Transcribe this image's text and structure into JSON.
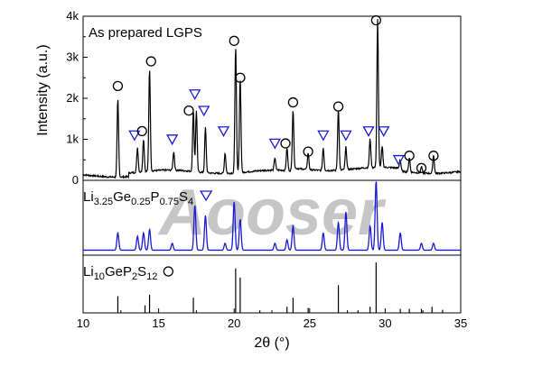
{
  "chart_data": {
    "type": "line",
    "xlabel": "2θ (°)",
    "ylabel": "Intensity (a.u.)",
    "xlim": [
      10,
      35
    ],
    "x_ticks": [
      "10",
      "15",
      "20",
      "25",
      "30",
      "35"
    ],
    "y_ticks": [
      "0",
      "1k",
      "2k",
      "3k",
      "4k"
    ],
    "ylim": [
      0,
      4000
    ],
    "watermark": "Aooser",
    "panels": [
      {
        "name": "As prepared  LGPS",
        "label_color": "#000000",
        "series_color": "#000000",
        "kind": "measured",
        "peaks": [
          {
            "x": 12.3,
            "y": 1900
          },
          {
            "x": 13.6,
            "y": 600
          },
          {
            "x": 14.0,
            "y": 800
          },
          {
            "x": 14.4,
            "y": 2500
          },
          {
            "x": 16.0,
            "y": 450
          },
          {
            "x": 17.3,
            "y": 1500
          },
          {
            "x": 17.5,
            "y": 1500
          },
          {
            "x": 18.1,
            "y": 1100
          },
          {
            "x": 19.4,
            "y": 500
          },
          {
            "x": 20.1,
            "y": 3100
          },
          {
            "x": 20.4,
            "y": 2300
          },
          {
            "x": 22.7,
            "y": 300
          },
          {
            "x": 23.5,
            "y": 550
          },
          {
            "x": 23.9,
            "y": 1500
          },
          {
            "x": 24.9,
            "y": 400
          },
          {
            "x": 25.9,
            "y": 550
          },
          {
            "x": 26.9,
            "y": 1500
          },
          {
            "x": 27.4,
            "y": 550
          },
          {
            "x": 29.0,
            "y": 700
          },
          {
            "x": 29.5,
            "y": 3600
          },
          {
            "x": 29.8,
            "y": 500
          },
          {
            "x": 31.0,
            "y": 250
          },
          {
            "x": 31.6,
            "y": 350
          },
          {
            "x": 32.4,
            "y": 150
          },
          {
            "x": 33.2,
            "y": 450
          }
        ],
        "markers": [
          {
            "x": 12.3,
            "y": 2300,
            "shape": "circle"
          },
          {
            "x": 13.4,
            "y": 1100,
            "shape": "triangle"
          },
          {
            "x": 13.9,
            "y": 1200,
            "shape": "circle"
          },
          {
            "x": 14.5,
            "y": 2900,
            "shape": "circle"
          },
          {
            "x": 15.9,
            "y": 1000,
            "shape": "triangle"
          },
          {
            "x": 17.0,
            "y": 1700,
            "shape": "circle"
          },
          {
            "x": 17.4,
            "y": 2100,
            "shape": "triangle"
          },
          {
            "x": 18.0,
            "y": 1700,
            "shape": "triangle"
          },
          {
            "x": 19.3,
            "y": 1200,
            "shape": "triangle"
          },
          {
            "x": 20.0,
            "y": 3400,
            "shape": "circle"
          },
          {
            "x": 20.4,
            "y": 2500,
            "shape": "circle"
          },
          {
            "x": 22.7,
            "y": 900,
            "shape": "triangle"
          },
          {
            "x": 23.4,
            "y": 900,
            "shape": "circle"
          },
          {
            "x": 23.9,
            "y": 1900,
            "shape": "circle"
          },
          {
            "x": 24.9,
            "y": 700,
            "shape": "circle"
          },
          {
            "x": 25.9,
            "y": 1100,
            "shape": "triangle"
          },
          {
            "x": 26.9,
            "y": 1800,
            "shape": "circle"
          },
          {
            "x": 27.4,
            "y": 1100,
            "shape": "triangle"
          },
          {
            "x": 28.9,
            "y": 1200,
            "shape": "triangle"
          },
          {
            "x": 29.4,
            "y": 3900,
            "shape": "circle"
          },
          {
            "x": 29.9,
            "y": 1200,
            "shape": "triangle"
          },
          {
            "x": 30.9,
            "y": 500,
            "shape": "triangle"
          },
          {
            "x": 31.6,
            "y": 600,
            "shape": "circle"
          },
          {
            "x": 32.4,
            "y": 300,
            "shape": "circle"
          },
          {
            "x": 33.2,
            "y": 600,
            "shape": "circle"
          }
        ]
      },
      {
        "name": "Li3.25Ge0.25P0.75S4",
        "label_parts": [
          {
            "t": "Li",
            "sub": false
          },
          {
            "t": "3.25",
            "sub": true
          },
          {
            "t": "Ge",
            "sub": false
          },
          {
            "t": "0.25",
            "sub": true
          },
          {
            "t": "P",
            "sub": false
          },
          {
            "t": "0.75",
            "sub": true
          },
          {
            "t": "S",
            "sub": false
          },
          {
            "t": "4",
            "sub": true
          }
        ],
        "legend_marker": "triangle",
        "label_color": "#1a1ad6",
        "series_color": "#1a1ad6",
        "kind": "calculated",
        "peaks": [
          {
            "x": 12.3,
            "y": 0.25
          },
          {
            "x": 13.6,
            "y": 0.2
          },
          {
            "x": 14.0,
            "y": 0.25
          },
          {
            "x": 14.4,
            "y": 0.3
          },
          {
            "x": 15.9,
            "y": 0.1
          },
          {
            "x": 17.4,
            "y": 0.65
          },
          {
            "x": 18.1,
            "y": 0.5
          },
          {
            "x": 19.4,
            "y": 0.1
          },
          {
            "x": 20.0,
            "y": 0.7
          },
          {
            "x": 20.4,
            "y": 0.45
          },
          {
            "x": 22.7,
            "y": 0.1
          },
          {
            "x": 23.5,
            "y": 0.15
          },
          {
            "x": 23.9,
            "y": 0.35
          },
          {
            "x": 25.9,
            "y": 0.25
          },
          {
            "x": 26.9,
            "y": 0.4
          },
          {
            "x": 27.4,
            "y": 0.55
          },
          {
            "x": 29.0,
            "y": 0.35
          },
          {
            "x": 29.4,
            "y": 1.0
          },
          {
            "x": 29.8,
            "y": 0.4
          },
          {
            "x": 31.0,
            "y": 0.25
          },
          {
            "x": 32.4,
            "y": 0.1
          },
          {
            "x": 33.2,
            "y": 0.1
          }
        ]
      },
      {
        "name": "Li10GeP2S12",
        "label_parts": [
          {
            "t": "Li",
            "sub": false
          },
          {
            "t": "10",
            "sub": true
          },
          {
            "t": "GeP",
            "sub": false
          },
          {
            "t": "2",
            "sub": true
          },
          {
            "t": "S",
            "sub": false
          },
          {
            "t": "12",
            "sub": true
          }
        ],
        "legend_marker": "circle",
        "label_color": "#000000",
        "series_color": "#000000",
        "kind": "sticks",
        "sticks": [
          {
            "x": 12.3,
            "y": 0.33
          },
          {
            "x": 14.1,
            "y": 0.15
          },
          {
            "x": 14.4,
            "y": 0.36
          },
          {
            "x": 17.3,
            "y": 0.3
          },
          {
            "x": 20.1,
            "y": 0.88
          },
          {
            "x": 20.4,
            "y": 0.7
          },
          {
            "x": 21.7,
            "y": 0.05
          },
          {
            "x": 23.5,
            "y": 0.12
          },
          {
            "x": 23.9,
            "y": 0.3
          },
          {
            "x": 24.9,
            "y": 0.1
          },
          {
            "x": 26.9,
            "y": 0.55
          },
          {
            "x": 28.2,
            "y": 0.05
          },
          {
            "x": 29.0,
            "y": 0.12
          },
          {
            "x": 29.4,
            "y": 1.0
          },
          {
            "x": 31.0,
            "y": 0.08
          },
          {
            "x": 31.6,
            "y": 0.08
          },
          {
            "x": 32.4,
            "y": 0.08
          },
          {
            "x": 33.1,
            "y": 0.12
          },
          {
            "x": 33.8,
            "y": 0.06
          }
        ]
      }
    ]
  },
  "colors": {
    "black": "#000000",
    "blue": "#1a1ad6",
    "watermark": "#8fb0e0"
  }
}
